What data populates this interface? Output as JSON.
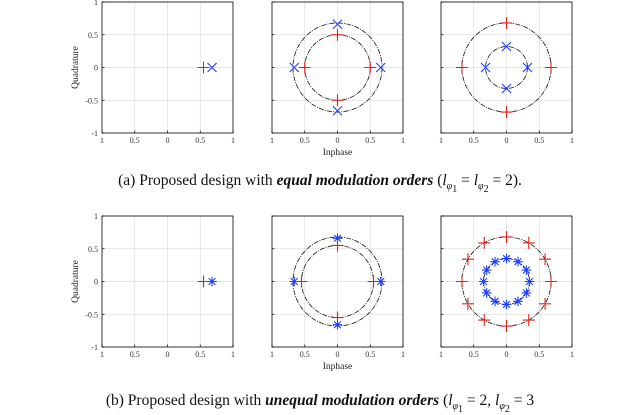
{
  "figure": {
    "captions": {
      "a": {
        "prefix": "(a) Proposed design with ",
        "emphasis": "equal modulation orders",
        "open": " (",
        "l1": "l",
        "sub1": "φ",
        "sub1n": "1",
        "eq1": " = ",
        "l2": "l",
        "sub2": "φ",
        "sub2n": "2",
        "eq2": " = 2).",
        "tail": ""
      },
      "b": {
        "prefix": "(b) Proposed design with ",
        "emphasis": "unequal modulation orders",
        "open": " (",
        "l1": "l",
        "sub1": "φ",
        "sub1n": "1",
        "eq1": " = 2, ",
        "l2": "l",
        "sub2": "φ",
        "sub2n": "2",
        "eq2": " = 3",
        "tail": ""
      }
    },
    "xlabel": "Inphase",
    "ylabel": "Quadrature",
    "xtick_labels": [
      "1",
      "0.5",
      "0",
      "0.5",
      "1"
    ],
    "ytick_labels": [
      "1",
      "0.5",
      "0",
      "-0.5",
      "-1"
    ],
    "colors": {
      "blue": "#1f3fff",
      "red": "#e0201a",
      "axis": "#000000",
      "grid": "#dddddd"
    }
  },
  "chart_data": [
    {
      "type": "scatter",
      "id": "a1",
      "xlim": [
        -1,
        1
      ],
      "ylim": [
        -1,
        1
      ],
      "grid": true,
      "circles": [],
      "series": [
        {
          "marker": "x",
          "points": [
            [
              0.68,
              0
            ]
          ]
        },
        {
          "marker": "+",
          "points": [
            [
              0.55,
              0
            ]
          ]
        }
      ]
    },
    {
      "type": "scatter",
      "id": "a2",
      "xlim": [
        -1,
        1
      ],
      "ylim": [
        -1,
        1
      ],
      "grid": true,
      "circles": [
        0.68,
        0.5
      ],
      "series": [
        {
          "marker": "x",
          "points": [
            [
              0,
              0.66
            ],
            [
              -0.66,
              0
            ],
            [
              0.66,
              0
            ],
            [
              0,
              -0.66
            ]
          ]
        },
        {
          "marker": "+",
          "points": [
            [
              0,
              0.5
            ],
            [
              -0.5,
              0
            ],
            [
              0.5,
              0
            ],
            [
              0,
              -0.5
            ]
          ]
        }
      ]
    },
    {
      "type": "scatter",
      "id": "a3",
      "xlim": [
        -1,
        1
      ],
      "ylim": [
        -1,
        1
      ],
      "grid": true,
      "circles": [
        0.68,
        0.32
      ],
      "series": [
        {
          "marker": "x",
          "points": [
            [
              0,
              0.32
            ],
            [
              -0.32,
              0
            ],
            [
              0.32,
              0
            ],
            [
              0,
              -0.32
            ]
          ]
        },
        {
          "marker": "+",
          "points": [
            [
              0,
              0.68
            ],
            [
              -0.68,
              0
            ],
            [
              0.68,
              0
            ],
            [
              0,
              -0.68
            ]
          ]
        }
      ]
    },
    {
      "type": "scatter",
      "id": "b1",
      "xlim": [
        -1,
        1
      ],
      "ylim": [
        -1,
        1
      ],
      "grid": true,
      "circles": [],
      "series": [
        {
          "marker": "star",
          "points": [
            [
              0.68,
              0
            ]
          ]
        },
        {
          "marker": "+",
          "points": [
            [
              0.55,
              0
            ]
          ]
        }
      ]
    },
    {
      "type": "scatter",
      "id": "b2",
      "xlim": [
        -1,
        1
      ],
      "ylim": [
        -1,
        1
      ],
      "grid": true,
      "circles": [
        0.68,
        0.55
      ],
      "series": [
        {
          "marker": "star",
          "points": [
            [
              0,
              0.66
            ],
            [
              -0.66,
              0
            ],
            [
              0.66,
              0
            ],
            [
              0,
              -0.66
            ]
          ]
        },
        {
          "marker": "+",
          "points": [
            [
              0,
              0.55
            ],
            [
              -0.55,
              0
            ],
            [
              0.55,
              0
            ],
            [
              0,
              -0.55
            ]
          ]
        }
      ]
    },
    {
      "type": "scatter",
      "id": "b3",
      "xlim": [
        -1,
        1
      ],
      "ylim": [
        -1,
        1
      ],
      "grid": true,
      "circles": [
        0.68,
        0.35
      ],
      "series": [
        {
          "marker": "star",
          "points": [
            [
              0,
              0.35
            ],
            [
              0.175,
              0.303
            ],
            [
              0.303,
              0.175
            ],
            [
              0.35,
              0
            ],
            [
              0.303,
              -0.175
            ],
            [
              0.175,
              -0.303
            ],
            [
              0,
              -0.35
            ],
            [
              -0.175,
              -0.303
            ],
            [
              -0.303,
              -0.175
            ],
            [
              -0.35,
              0
            ],
            [
              -0.303,
              0.175
            ],
            [
              -0.175,
              0.303
            ]
          ]
        },
        {
          "marker": "+",
          "points": [
            [
              0,
              0.68
            ],
            [
              0.34,
              0.589
            ],
            [
              0.589,
              0.34
            ],
            [
              0.68,
              0
            ],
            [
              0.589,
              -0.34
            ],
            [
              0.34,
              -0.589
            ],
            [
              0,
              -0.68
            ],
            [
              -0.34,
              -0.589
            ],
            [
              -0.589,
              -0.34
            ],
            [
              -0.68,
              0
            ],
            [
              -0.589,
              0.34
            ],
            [
              -0.34,
              0.589
            ]
          ]
        }
      ]
    }
  ]
}
